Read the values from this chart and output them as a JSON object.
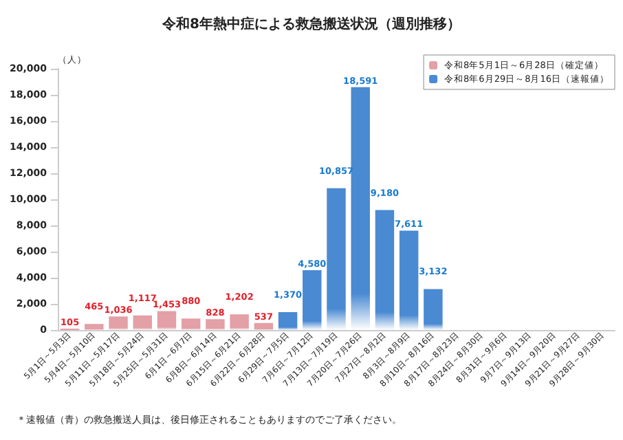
{
  "chart_data": {
    "type": "bar",
    "title": "令和8年熱中症による救急搬送状況（週別推移）",
    "ylabel": "（人）",
    "categories": [
      "5月1日～5月3日",
      "5月4日～5月10日",
      "5月11日～5月17日",
      "5月18日～5月24日",
      "5月25日～5月31日",
      "6月1日～6月7日",
      "6月8日～6月14日",
      "6月15日～6月21日",
      "6月22日～6月28日",
      "6月29日～7月5日",
      "7月6日～7月12日",
      "7月13日～7月19日",
      "7月20日～7月26日",
      "7月27日～8月2日",
      "8月3日～8月9日",
      "8月10日～8月16日",
      "8月17日～8月23日",
      "8月24日～8月30日",
      "8月31日～9月6日",
      "9月7日～9月13日",
      "9月14日～9月20日",
      "9月21日～9月27日",
      "9月28日～9月30日"
    ],
    "series": [
      {
        "name": "令和8年5月1日～6月28日（確定値）",
        "color": "#e3a0a6",
        "values": [
          105,
          465,
          1036,
          1117,
          1453,
          880,
          828,
          1202,
          537,
          null,
          null,
          null,
          null,
          null,
          null,
          null,
          null,
          null,
          null,
          null,
          null,
          null,
          null
        ],
        "value_labels": [
          "105",
          "465",
          "1,036",
          "1,117",
          "1,453",
          "880",
          "828",
          "1,202",
          "537",
          null,
          null,
          null,
          null,
          null,
          null,
          null,
          null,
          null,
          null,
          null,
          null,
          null,
          null
        ]
      },
      {
        "name": "令和8年6月29日～8月16日（速報値）",
        "color": "#4a8ad2",
        "values": [
          null,
          null,
          null,
          null,
          null,
          null,
          null,
          null,
          null,
          1370,
          4580,
          10857,
          18591,
          9180,
          7611,
          3132,
          null,
          null,
          null,
          null,
          null,
          null,
          null
        ],
        "value_labels": [
          null,
          null,
          null,
          null,
          null,
          null,
          null,
          null,
          null,
          "1,370",
          "4,580",
          "10,857",
          "18,591",
          "9,180",
          "7,611",
          "3,132",
          null,
          null,
          null,
          null,
          null,
          null,
          null
        ]
      }
    ],
    "ylim": [
      0,
      20000
    ],
    "yticks": [
      0,
      {
        "value": 2000,
        "label": "2,000"
      },
      {
        "value": 4000,
        "label": "4,000"
      },
      {
        "value": 6000,
        "label": "6,000"
      },
      {
        "value": 8000,
        "label": "8,000"
      },
      {
        "value": 10000,
        "label": "10,000"
      },
      {
        "value": 12000,
        "label": "12,000"
      },
      {
        "value": 14000,
        "label": "14,000"
      },
      {
        "value": 16000,
        "label": "16,000"
      },
      {
        "value": 18000,
        "label": "18,000"
      },
      {
        "value": 20000,
        "label": "20,000"
      }
    ],
    "grid": false,
    "legend": "top right",
    "annotations": [
      "＊速報値（青）の救急搬送人員は、後日修正されることもありますのでご了承ください。"
    ]
  }
}
